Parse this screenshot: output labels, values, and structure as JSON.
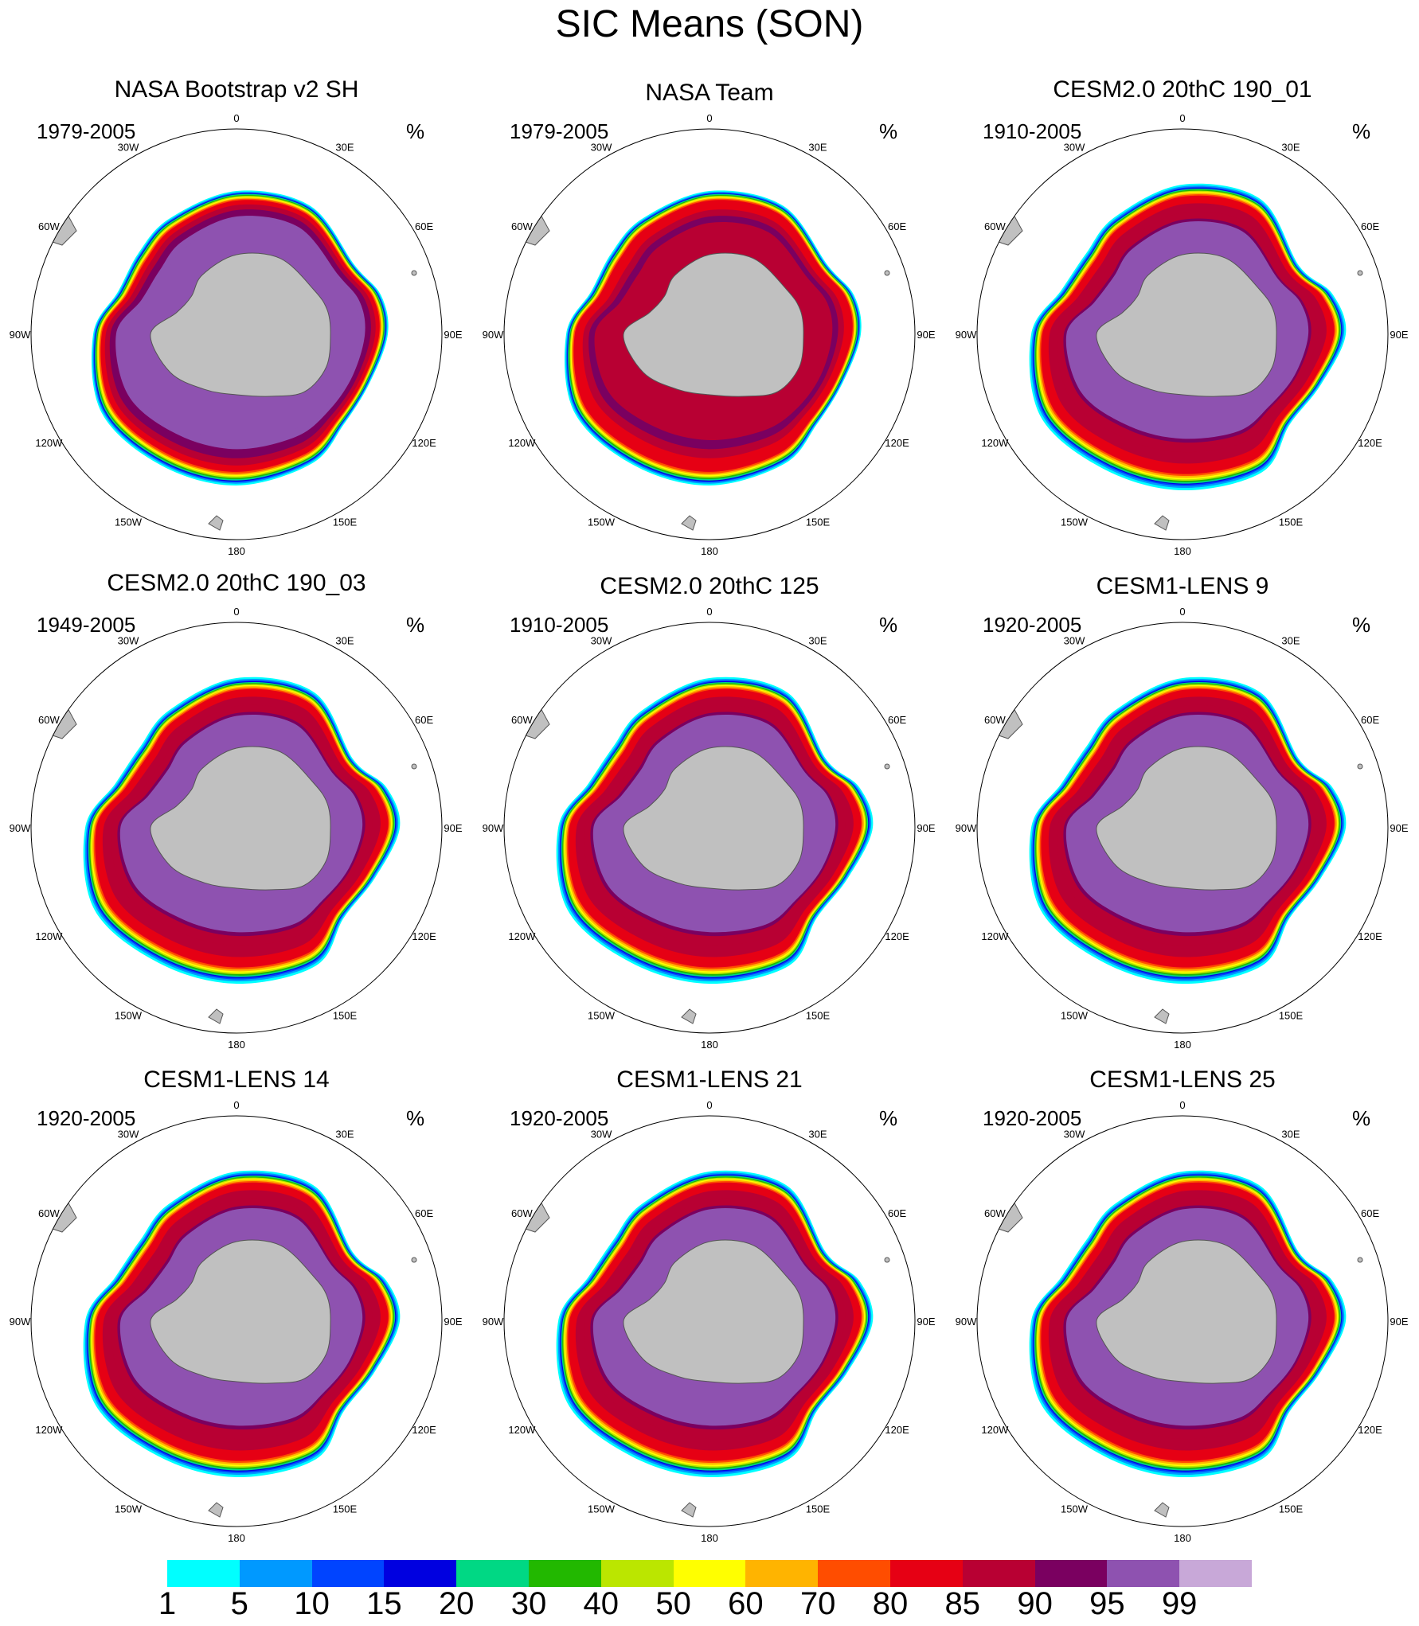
{
  "title": "SIC Means (SON)",
  "colorbar": {
    "levels": [
      "1",
      "5",
      "10",
      "15",
      "20",
      "30",
      "40",
      "50",
      "60",
      "70",
      "80",
      "85",
      "90",
      "95",
      "99"
    ],
    "colors": [
      "#00ffff",
      "#0099ff",
      "#0044ff",
      "#0000e0",
      "#00d884",
      "#22b800",
      "#bbe600",
      "#ffff00",
      "#ffb400",
      "#ff4d00",
      "#e60014",
      "#b80033",
      "#7a0060",
      "#8e52b0",
      "#c8a8d8"
    ]
  },
  "map_labels": {
    "top": "0",
    "bottom": "180",
    "l30w": "30W",
    "l30e": "30E",
    "l60w": "60W",
    "l60e": "60E",
    "l90w": "90W",
    "l90e": "90E",
    "l120w": "120W",
    "l120e": "120E",
    "l150w": "150W",
    "l150e": "150E"
  },
  "chart_data": {
    "type": "map-panels",
    "variable": "sea ice concentration",
    "unit": "%",
    "panels": [
      {
        "title": "NASA Bootstrap v2 SH",
        "period": "1979-2005",
        "unit": "%",
        "style": "bootstrap"
      },
      {
        "title": "NASA Team",
        "period": "1979-2005",
        "unit": "%",
        "style": "team"
      },
      {
        "title": "CESM2.0 20thC 190_01",
        "period": "1910-2005",
        "unit": "%",
        "style": "model"
      },
      {
        "title": "CESM2.0 20thC 190_03",
        "period": "1949-2005",
        "unit": "%",
        "style": "model"
      },
      {
        "title": "CESM2.0 20thC 125",
        "period": "1910-2005",
        "unit": "%",
        "style": "model"
      },
      {
        "title": "CESM1-LENS 9",
        "period": "1920-2005",
        "unit": "%",
        "style": "model"
      },
      {
        "title": "CESM1-LENS 14",
        "period": "1920-2005",
        "unit": "%",
        "style": "model"
      },
      {
        "title": "CESM1-LENS 21",
        "period": "1920-2005",
        "unit": "%",
        "style": "model"
      },
      {
        "title": "CESM1-LENS 25",
        "period": "1920-2005",
        "unit": "%",
        "style": "model"
      }
    ]
  }
}
